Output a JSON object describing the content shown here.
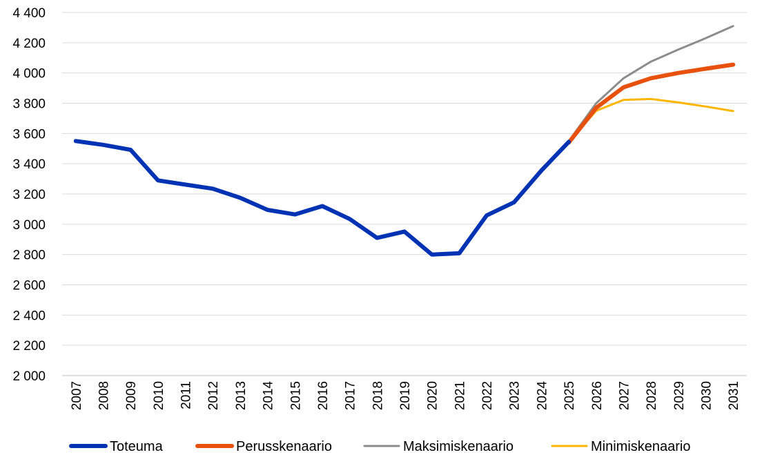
{
  "chart_data": {
    "type": "line",
    "title": "",
    "xlabel": "",
    "ylabel": "",
    "x": [
      "2007",
      "2008",
      "2009",
      "2010",
      "2011",
      "2012",
      "2013",
      "2014",
      "2015",
      "2016",
      "2017",
      "2018",
      "2019",
      "2020",
      "2021",
      "2022",
      "2023",
      "2024",
      "2025",
      "2026",
      "2027",
      "2028",
      "2029",
      "2030",
      "2031"
    ],
    "ylim": [
      2000,
      4400
    ],
    "yticks": [
      2000,
      2200,
      2400,
      2600,
      2800,
      3000,
      3200,
      3400,
      3600,
      3800,
      4000,
      4200,
      4400
    ],
    "ytick_labels": [
      "2 000",
      "2 200",
      "2 400",
      "2 600",
      "2 800",
      "3 000",
      "3 200",
      "3 400",
      "3 600",
      "3 800",
      "4 000",
      "4 200",
      "4 400"
    ],
    "grid": true,
    "legend_position": "bottom",
    "series": [
      {
        "name": "Toteuma",
        "color": "#0033b3",
        "values": [
          3550,
          3525,
          3492,
          3290,
          3262,
          3235,
          3175,
          3095,
          3065,
          3120,
          3035,
          2910,
          2952,
          2800,
          2808,
          3058,
          3145,
          3355,
          3545,
          null,
          null,
          null,
          null,
          null,
          null
        ]
      },
      {
        "name": "Perusskenaario",
        "color": "#e8500e",
        "values": [
          null,
          null,
          null,
          null,
          null,
          null,
          null,
          null,
          null,
          null,
          null,
          null,
          null,
          null,
          null,
          null,
          null,
          null,
          3540,
          3770,
          3905,
          3965,
          4000,
          4028,
          4055
        ]
      },
      {
        "name": "Maksimiskenaario",
        "color": "#8c8c8c",
        "values": [
          null,
          null,
          null,
          null,
          null,
          null,
          null,
          null,
          null,
          null,
          null,
          null,
          null,
          null,
          null,
          null,
          null,
          null,
          3550,
          3800,
          3965,
          4075,
          4155,
          4230,
          4310
        ]
      },
      {
        "name": "Minimiskenaario",
        "color": "#ffb400",
        "values": [
          null,
          null,
          null,
          null,
          null,
          null,
          null,
          null,
          null,
          null,
          null,
          null,
          null,
          null,
          null,
          null,
          null,
          null,
          3545,
          3750,
          3822,
          3828,
          3805,
          3778,
          3748
        ]
      }
    ]
  }
}
